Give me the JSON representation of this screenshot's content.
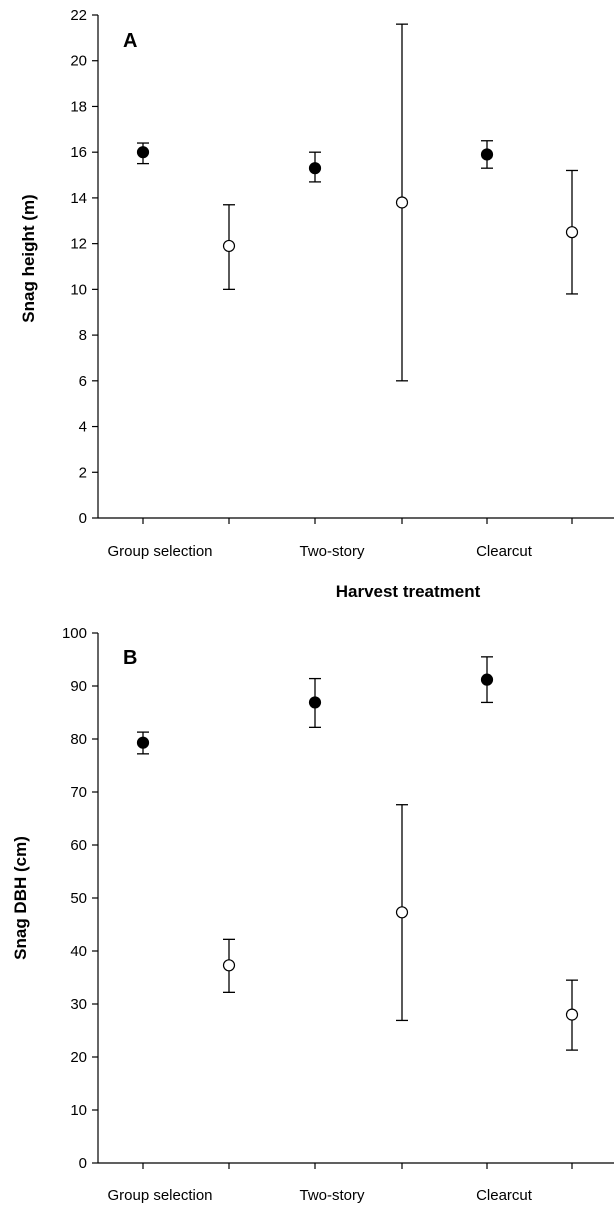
{
  "chart_data": [
    {
      "type": "scatter",
      "panel_label": "A",
      "categories": [
        "Group selection",
        "Two-story",
        "Clearcut"
      ],
      "xlabel": "Harvest treatment",
      "ylabel": "Snag height (m)",
      "ylim": [
        0,
        22
      ],
      "yticks": [
        0,
        2,
        4,
        6,
        8,
        10,
        12,
        14,
        16,
        18,
        20,
        22
      ],
      "grid": false,
      "series": [
        {
          "marker": "filled-circle",
          "color": "#000000",
          "values": [
            16.0,
            15.3,
            15.9
          ],
          "err_low": [
            15.5,
            14.7,
            15.3
          ],
          "err_high": [
            16.4,
            16.0,
            16.5
          ]
        },
        {
          "marker": "open-circle",
          "color": "#ffffff",
          "values": [
            11.9,
            13.8,
            12.5
          ],
          "err_low": [
            10.0,
            6.0,
            9.8
          ],
          "err_high": [
            13.7,
            21.6,
            15.2
          ]
        }
      ]
    },
    {
      "type": "scatter",
      "panel_label": "B",
      "categories": [
        "Group selection",
        "Two-story",
        "Clearcut"
      ],
      "xlabel": "Harvest treatment",
      "ylabel": "Snag DBH (cm)",
      "ylim": [
        0,
        100
      ],
      "yticks": [
        0,
        10,
        20,
        30,
        40,
        50,
        60,
        70,
        80,
        90,
        100
      ],
      "grid": false,
      "series": [
        {
          "marker": "filled-circle",
          "color": "#000000",
          "values": [
            79.3,
            86.9,
            91.2
          ],
          "err_low": [
            77.2,
            82.2,
            86.9
          ],
          "err_high": [
            81.3,
            91.4,
            95.5
          ]
        },
        {
          "marker": "open-circle",
          "color": "#ffffff",
          "values": [
            37.3,
            47.3,
            28.0
          ],
          "err_low": [
            32.2,
            26.9,
            21.3
          ],
          "err_high": [
            42.2,
            67.6,
            34.5
          ]
        }
      ]
    }
  ]
}
